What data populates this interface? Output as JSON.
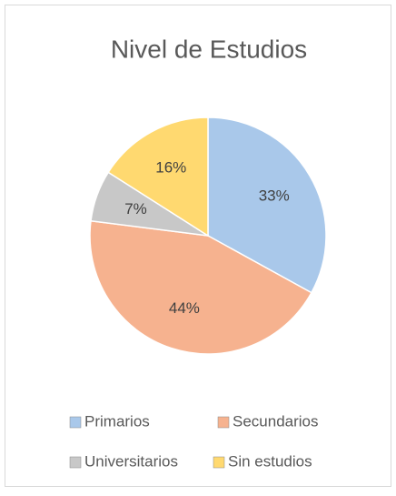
{
  "chart_data": {
    "type": "pie",
    "title": "Nivel de Estudios",
    "categories": [
      "Primarios",
      "Secundarios",
      "Universitarios",
      "Sin estudios"
    ],
    "values": [
      33,
      44,
      7,
      16
    ],
    "value_labels": [
      "33%",
      "44%",
      "7%",
      "16%"
    ],
    "colors": [
      "#a9c8ea",
      "#f6b28f",
      "#c8c8c8",
      "#ffd970"
    ],
    "legend": "bottom"
  }
}
